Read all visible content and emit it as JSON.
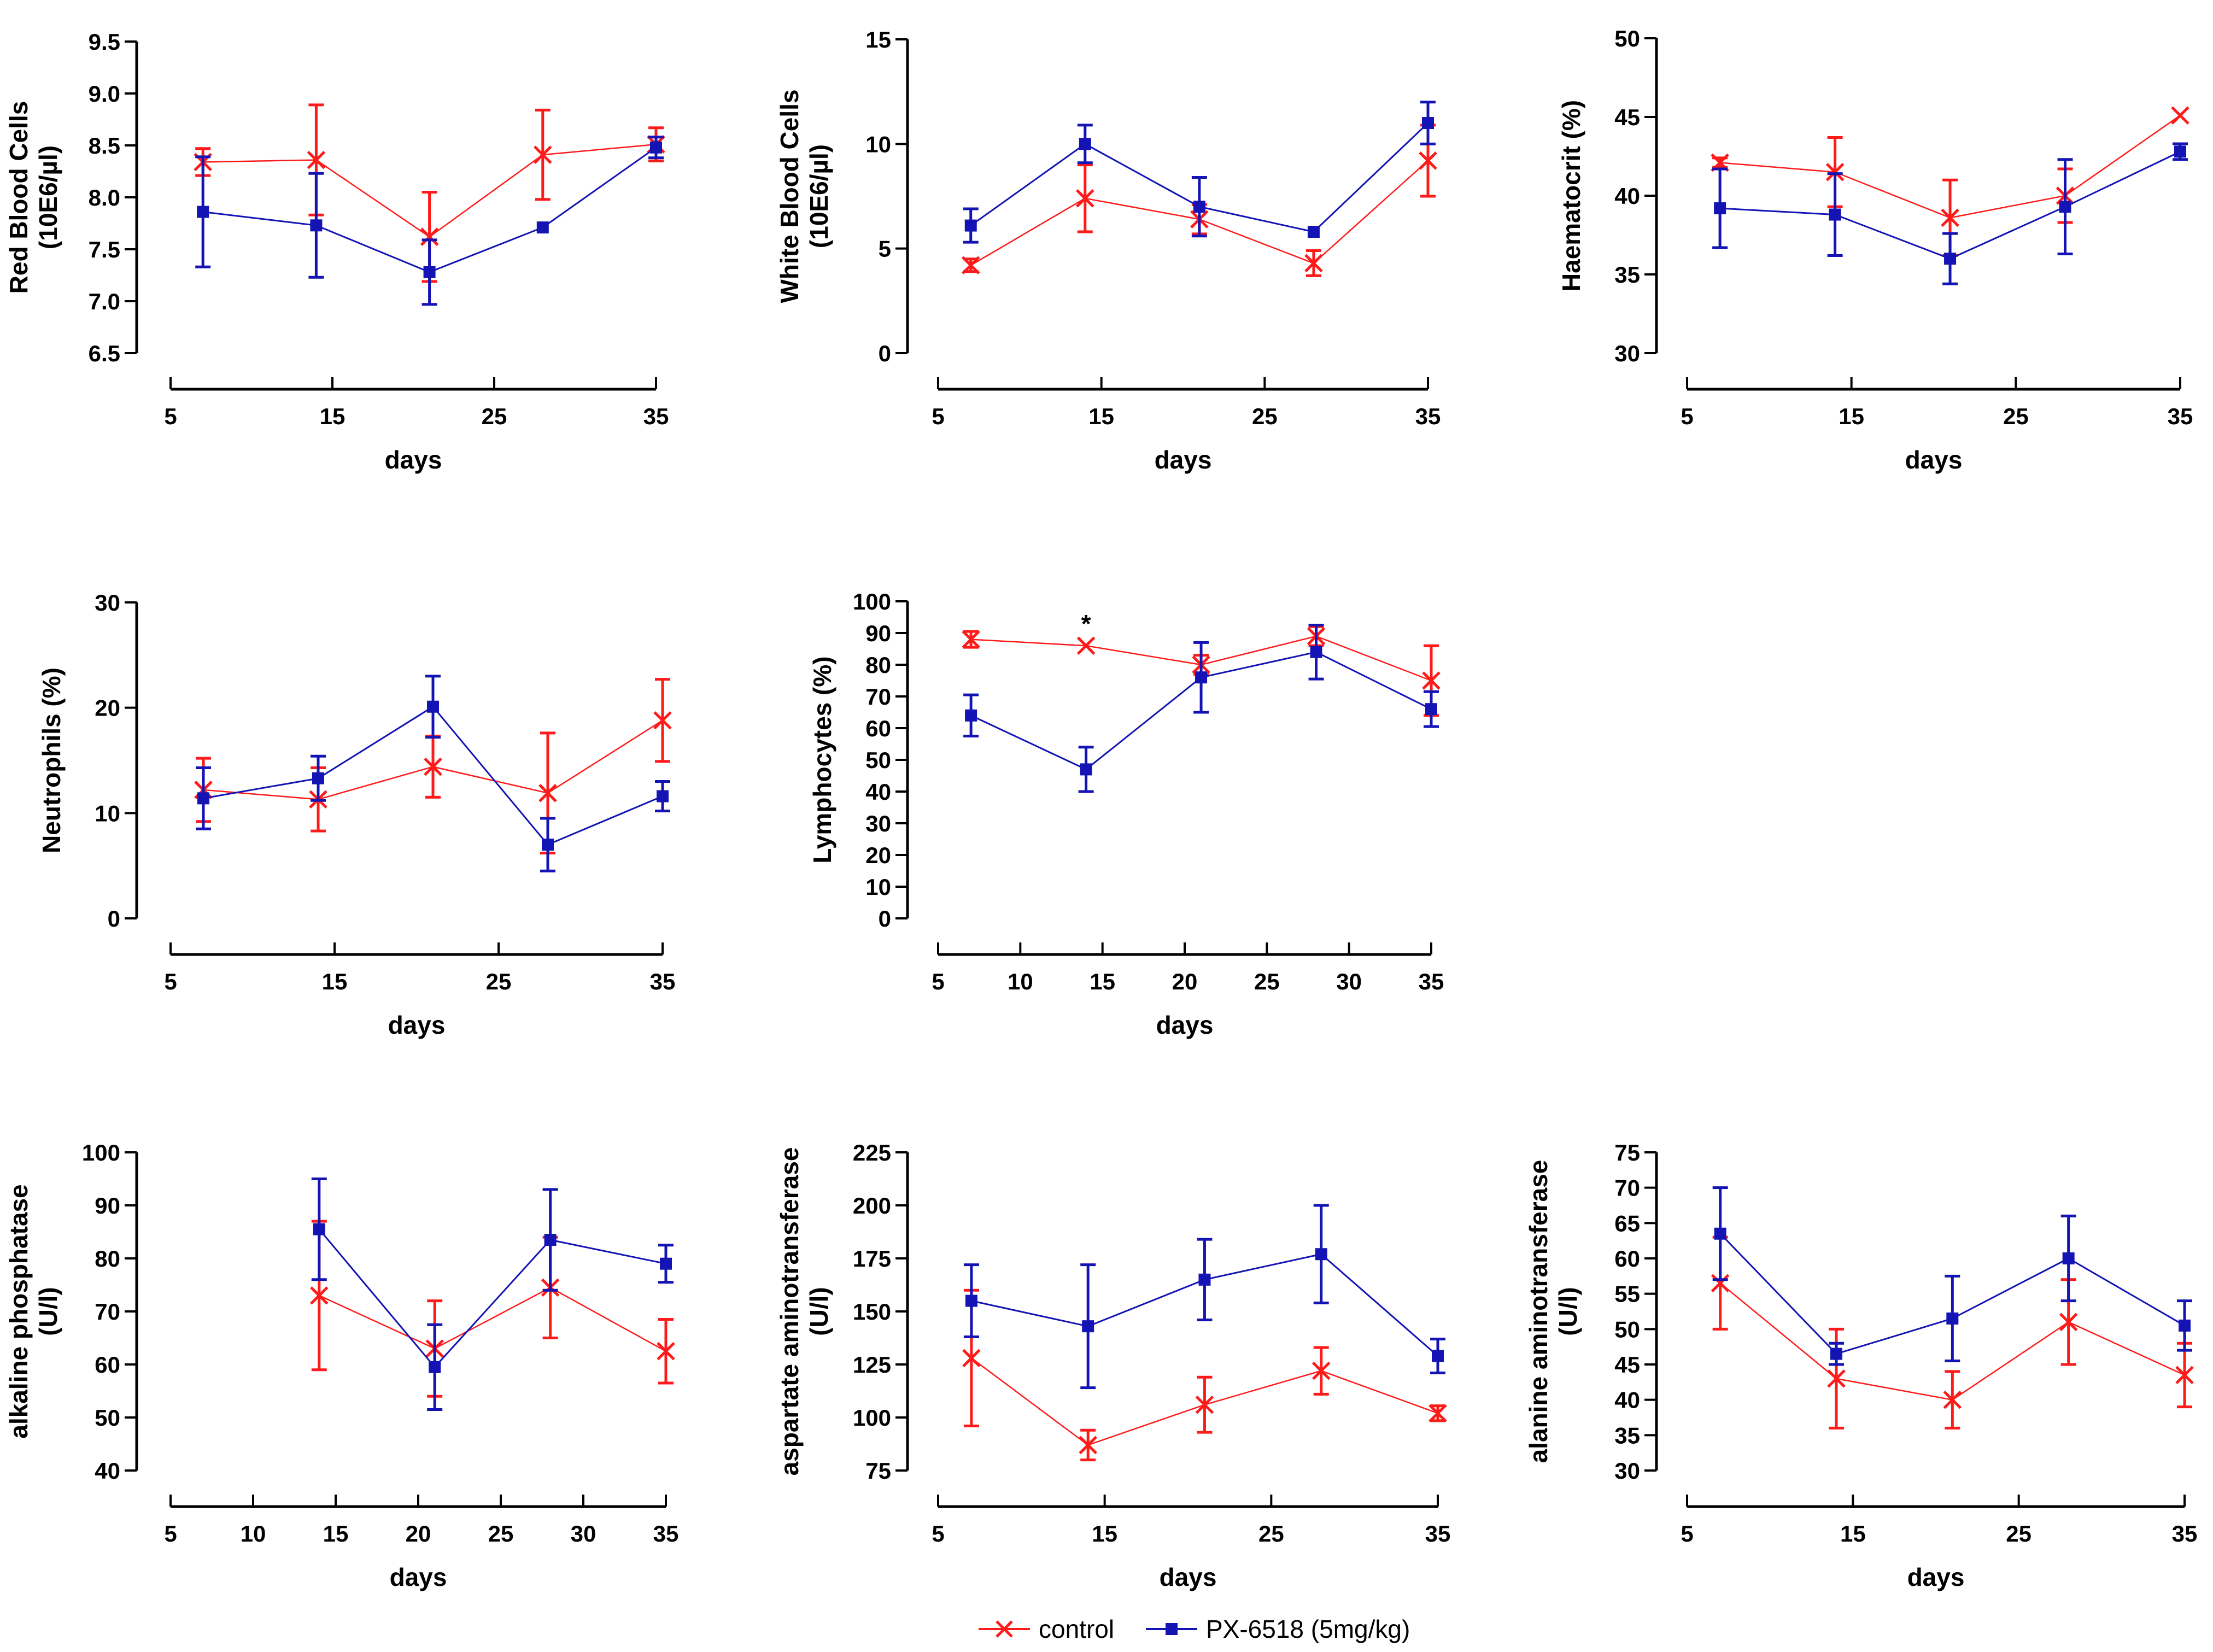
{
  "colors": {
    "control": "#ff1a1a",
    "treated": "#1414b4",
    "axis": "#000000"
  },
  "legend": {
    "items": [
      {
        "label": "control",
        "series": "control",
        "marker": "x"
      },
      {
        "label": "PX-6518 (5mg/kg)",
        "series": "treated",
        "marker": "square"
      }
    ]
  },
  "chart_data": [
    {
      "id": "rbc",
      "type": "line",
      "ylabel": [
        "Red Blood Cells",
        "(10E6/µl)"
      ],
      "xlabel": "days",
      "ylim": [
        6.5,
        9.5
      ],
      "yticks": [
        6.5,
        7.0,
        7.5,
        8.0,
        8.5,
        9.0,
        9.5
      ],
      "ytick_labels": [
        "6.5",
        "7.0",
        "7.5",
        "8.0",
        "8.5",
        "9.0",
        "9.5"
      ],
      "xlim": [
        5,
        35
      ],
      "xticks": [
        5,
        15,
        25,
        35
      ],
      "series": [
        {
          "name": "control",
          "x": [
            7,
            14,
            21,
            28,
            35
          ],
          "values": [
            8.34,
            8.36,
            7.62,
            8.41,
            8.51
          ],
          "err": [
            0.13,
            0.53,
            0.43,
            0.43,
            0.16
          ]
        },
        {
          "name": "PX-6518 (5mg/kg)",
          "x": [
            7,
            14,
            21,
            28,
            35
          ],
          "values": [
            7.86,
            7.73,
            7.28,
            7.71,
            8.48
          ],
          "err": [
            0.53,
            0.5,
            0.31,
            0.0,
            0.1
          ]
        }
      ]
    },
    {
      "id": "wbc",
      "type": "line",
      "ylabel": [
        "White Blood Cells",
        "(10E6/µl)"
      ],
      "xlabel": "days",
      "ylim": [
        0,
        15
      ],
      "yticks": [
        0,
        5,
        10,
        15
      ],
      "ytick_labels": [
        "0",
        "5",
        "10",
        "15"
      ],
      "xlim": [
        5,
        35
      ],
      "xticks": [
        5,
        15,
        25,
        35
      ],
      "series": [
        {
          "name": "control",
          "x": [
            7,
            14,
            21,
            28,
            35
          ],
          "values": [
            4.2,
            7.4,
            6.4,
            4.3,
            9.2
          ],
          "err": [
            0.3,
            1.6,
            0.7,
            0.6,
            1.7
          ]
        },
        {
          "name": "PX-6518 (5mg/kg)",
          "x": [
            7,
            14,
            21,
            28,
            35
          ],
          "values": [
            6.1,
            10.0,
            7.0,
            5.8,
            11.0
          ],
          "err": [
            0.8,
            0.9,
            1.4,
            0.0,
            1.0
          ]
        }
      ]
    },
    {
      "id": "hct",
      "type": "line",
      "ylabel": [
        "Haematocrit (%)"
      ],
      "xlabel": "days",
      "ylim": [
        30,
        50
      ],
      "yticks": [
        30,
        35,
        40,
        45,
        50
      ],
      "ytick_labels": [
        "30",
        "35",
        "40",
        "45",
        "50"
      ],
      "xlim": [
        5,
        35
      ],
      "xticks": [
        5,
        15,
        25,
        35
      ],
      "series": [
        {
          "name": "control",
          "x": [
            7,
            14,
            21,
            28,
            35
          ],
          "values": [
            42.1,
            41.5,
            38.6,
            40.0,
            45.1
          ],
          "err": [
            0.3,
            2.2,
            2.4,
            1.7,
            0.0
          ]
        },
        {
          "name": "PX-6518 (5mg/kg)",
          "x": [
            7,
            14,
            21,
            28,
            35
          ],
          "values": [
            39.2,
            38.8,
            36.0,
            39.3,
            42.8
          ],
          "err": [
            2.5,
            2.6,
            1.6,
            3.0,
            0.5
          ]
        }
      ]
    },
    {
      "id": "neut",
      "type": "line",
      "ylabel": [
        "Neutrophils (%)"
      ],
      "xlabel": "days",
      "ylim": [
        0,
        30
      ],
      "yticks": [
        0,
        10,
        20,
        30
      ],
      "ytick_labels": [
        "0",
        "10",
        "20",
        "30"
      ],
      "xlim": [
        5,
        35
      ],
      "xticks": [
        5,
        15,
        25,
        35
      ],
      "series": [
        {
          "name": "control",
          "x": [
            7,
            14,
            21,
            28,
            35
          ],
          "values": [
            12.2,
            11.3,
            14.4,
            11.9,
            18.8
          ],
          "err": [
            3.0,
            3.0,
            2.9,
            5.7,
            3.9
          ]
        },
        {
          "name": "PX-6518 (5mg/kg)",
          "x": [
            7,
            14,
            21,
            28,
            35
          ],
          "values": [
            11.4,
            13.3,
            20.1,
            7.0,
            11.6
          ],
          "err": [
            2.9,
            2.1,
            2.9,
            2.5,
            1.4
          ]
        }
      ]
    },
    {
      "id": "lymph",
      "type": "line",
      "ylabel": [
        "Lymphocytes (%)"
      ],
      "xlabel": "days",
      "ylim": [
        0,
        100
      ],
      "yticks": [
        0,
        10,
        20,
        30,
        40,
        50,
        60,
        70,
        80,
        90,
        100
      ],
      "ytick_labels": [
        "0",
        "10",
        "20",
        "30",
        "40",
        "50",
        "60",
        "70",
        "80",
        "90",
        "100"
      ],
      "xlim": [
        5,
        35
      ],
      "xticks": [
        5,
        10,
        15,
        20,
        25,
        30,
        35
      ],
      "annotations": [
        {
          "text": "*",
          "x": 14,
          "y": 96
        }
      ],
      "series": [
        {
          "name": "control",
          "x": [
            7,
            14,
            21,
            28,
            35
          ],
          "values": [
            88,
            86,
            80,
            89,
            75
          ],
          "err": [
            2.5,
            0.0,
            3.0,
            3.0,
            11.0
          ]
        },
        {
          "name": "PX-6518 (5mg/kg)",
          "x": [
            7,
            14,
            21,
            28,
            35
          ],
          "values": [
            64,
            47,
            76,
            84,
            66
          ],
          "err": [
            6.5,
            7.0,
            11.0,
            8.5,
            5.5
          ]
        }
      ]
    },
    {
      "id": "alp",
      "type": "line",
      "ylabel": [
        "alkaline phosphatase",
        "(U/l)"
      ],
      "xlabel": "days",
      "ylim": [
        40,
        100
      ],
      "yticks": [
        40,
        50,
        60,
        70,
        80,
        90,
        100
      ],
      "ytick_labels": [
        "40",
        "50",
        "60",
        "70",
        "80",
        "90",
        "100"
      ],
      "xlim": [
        5,
        35
      ],
      "xticks": [
        5,
        10,
        15,
        20,
        25,
        30,
        35
      ],
      "series": [
        {
          "name": "control",
          "x": [
            14,
            21,
            28,
            35
          ],
          "values": [
            73,
            63,
            74.5,
            62.5
          ],
          "err": [
            14.0,
            9.0,
            9.5,
            6.0
          ]
        },
        {
          "name": "PX-6518 (5mg/kg)",
          "x": [
            14,
            21,
            28,
            35
          ],
          "values": [
            85.5,
            59.5,
            83.5,
            79
          ],
          "err": [
            9.5,
            8.0,
            9.5,
            3.5
          ]
        }
      ]
    },
    {
      "id": "ast",
      "type": "line",
      "ylabel": [
        "aspartate aminotransferase",
        "(U/l)"
      ],
      "xlabel": "days",
      "ylim": [
        75,
        225
      ],
      "yticks": [
        75,
        100,
        125,
        150,
        175,
        200,
        225
      ],
      "ytick_labels": [
        "75",
        "100",
        "125",
        "150",
        "175",
        "200",
        "225"
      ],
      "xlim": [
        5,
        35
      ],
      "xticks": [
        5,
        15,
        25,
        35
      ],
      "series": [
        {
          "name": "control",
          "x": [
            7,
            14,
            21,
            28,
            35
          ],
          "values": [
            128,
            87,
            106,
            122,
            102
          ],
          "err": [
            32,
            7,
            13,
            11,
            3.5
          ]
        },
        {
          "name": "PX-6518 (5mg/kg)",
          "x": [
            7,
            14,
            21,
            28,
            35
          ],
          "values": [
            155,
            143,
            165,
            177,
            129
          ],
          "err": [
            17,
            29,
            19,
            23,
            8
          ]
        }
      ]
    },
    {
      "id": "alt",
      "type": "line",
      "ylabel": [
        "alanine aminotransferase",
        "(U/l)"
      ],
      "xlabel": "days",
      "ylim": [
        30,
        75
      ],
      "yticks": [
        30,
        35,
        40,
        45,
        50,
        55,
        60,
        65,
        70,
        75
      ],
      "ytick_labels": [
        "30",
        "35",
        "40",
        "45",
        "50",
        "55",
        "60",
        "65",
        "70",
        "75"
      ],
      "xlim": [
        5,
        35
      ],
      "xticks": [
        5,
        15,
        25,
        35
      ],
      "series": [
        {
          "name": "control",
          "x": [
            7,
            14,
            21,
            28,
            35
          ],
          "values": [
            56.5,
            43,
            40,
            51,
            43.5
          ],
          "err": [
            6.5,
            7.0,
            4.0,
            6.0,
            4.5
          ]
        },
        {
          "name": "PX-6518 (5mg/kg)",
          "x": [
            7,
            14,
            21,
            28,
            35
          ],
          "values": [
            63.5,
            46.5,
            51.5,
            60,
            50.5
          ],
          "err": [
            6.5,
            1.5,
            6.0,
            6.0,
            3.5
          ]
        }
      ]
    }
  ]
}
